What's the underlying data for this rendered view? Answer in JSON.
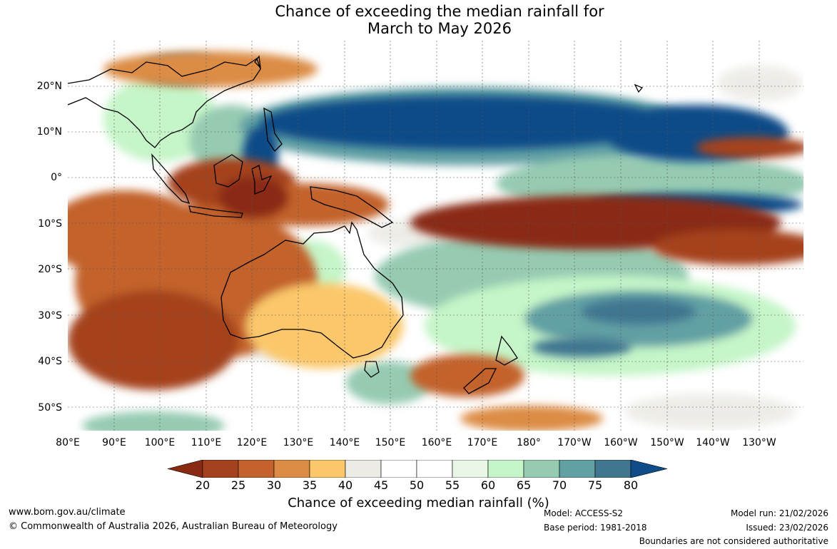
{
  "title": {
    "line1": "Chance of exceeding the median rainfall for",
    "line2": "March to May 2026"
  },
  "map": {
    "latitude_labels": [
      "20°N",
      "10°N",
      "0°",
      "10°S",
      "20°S",
      "30°S",
      "40°S",
      "50°S"
    ],
    "longitude_labels": [
      "80°E",
      "90°E",
      "100°E",
      "110°E",
      "120°E",
      "130°E",
      "140°E",
      "150°E",
      "160°E",
      "170°E",
      "180°",
      "170°W",
      "160°W",
      "150°W",
      "140°W",
      "130°W"
    ],
    "regions": [
      {
        "name": "Maritime Continent / Indonesia",
        "category": "below median",
        "chance": "20-30%"
      },
      {
        "name": "Central equatorial Pacific (0-10°S)",
        "category": "below median",
        "chance": "20-25%"
      },
      {
        "name": "Western North Pacific (5-15°N)",
        "category": "above median",
        "chance": "75-80%+"
      },
      {
        "name": "Eastern equatorial Pacific (~5°S)",
        "category": "above median",
        "chance": "75-80%+"
      },
      {
        "name": "Western Australia / Indian Ocean",
        "category": "below median",
        "chance": "25-35%"
      },
      {
        "name": "Southwest Pacific (20-40°S)",
        "category": "above median",
        "chance": "65-80%"
      }
    ]
  },
  "legend": {
    "colors": [
      "#8a2a12",
      "#a5421e",
      "#c3622c",
      "#dc8c44",
      "#fbc76a",
      "#ecebe6",
      "#ffffff",
      "#ffffff",
      "#e8f7e6",
      "#c5f5c8",
      "#96cbb2",
      "#62a0a4",
      "#417690",
      "#0f4c88"
    ],
    "ticks": [
      "20",
      "25",
      "30",
      "35",
      "40",
      "45",
      "50",
      "55",
      "60",
      "65",
      "70",
      "75",
      "80"
    ],
    "label": "Chance of exceeding median rainfall (%)"
  },
  "footer": {
    "website": "www.bom.gov.au/climate",
    "copyright": "© Commonwealth of Australia 2026, Australian Bureau of Meteorology",
    "model": "Model: ACCESS-S2",
    "base_period": "Base period: 1981-2018",
    "model_run": "Model run: 21/02/2026",
    "issued": "Issued: 23/02/2026",
    "disclaimer": "Boundaries are not considered authoritative"
  }
}
